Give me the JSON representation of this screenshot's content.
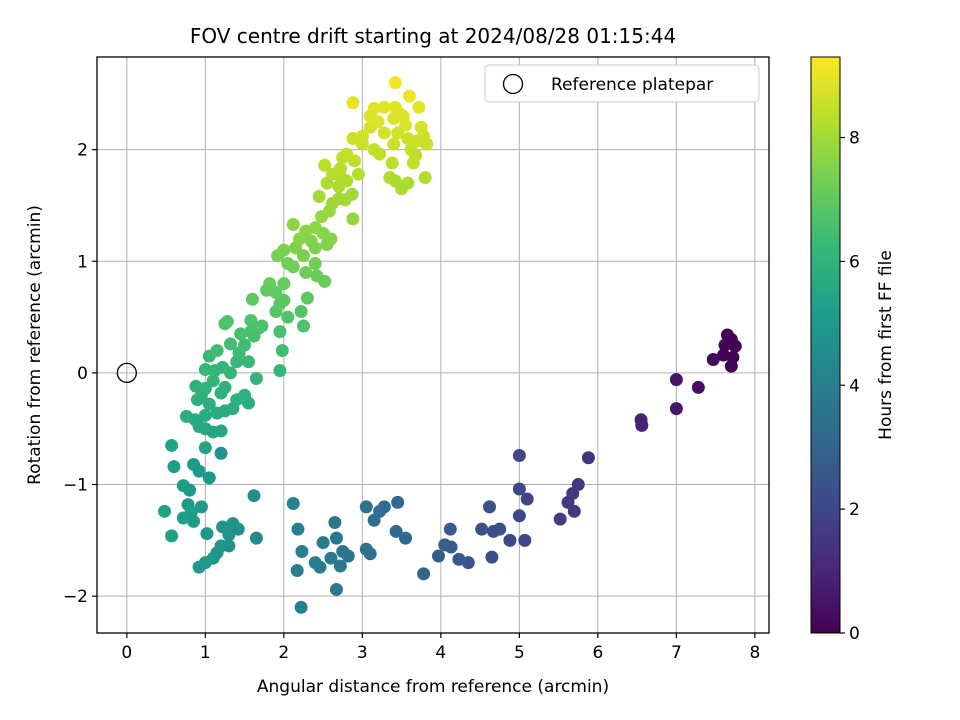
{
  "chart_data": {
    "type": "scatter",
    "title": "FOV centre drift starting at 2024/08/28 01:15:44",
    "xlabel": "Angular distance from reference (arcmin)",
    "ylabel": "Rotation from reference (arcmin)",
    "xlim": [
      -0.38,
      8.18
    ],
    "ylim": [
      -2.33,
      2.83
    ],
    "xticks": [
      0,
      1,
      2,
      3,
      4,
      5,
      6,
      7,
      8
    ],
    "yticks": [
      -2,
      -1,
      0,
      1,
      2
    ],
    "grid": true,
    "legend": {
      "position": "top-right",
      "entries": [
        "Reference platepar"
      ]
    },
    "reference_point": {
      "x": 0,
      "y": 0
    },
    "colorbar": {
      "label": "Hours from first FF file",
      "range": [
        0,
        9.3
      ],
      "ticks": [
        0,
        2,
        4,
        6,
        8
      ],
      "colormap": "viridis"
    },
    "series": [
      {
        "points": [
          [
            7.65,
            0.34
          ],
          [
            7.7,
            0.3
          ],
          [
            7.62,
            0.25
          ],
          [
            7.75,
            0.24
          ],
          [
            7.6,
            0.16
          ],
          [
            7.72,
            0.14
          ],
          [
            7.47,
            0.12
          ],
          [
            7.7,
            0.06
          ],
          [
            7.0,
            -0.06
          ],
          [
            7.28,
            -0.13
          ],
          [
            7.0,
            -0.32
          ],
          [
            6.55,
            -0.42
          ],
          [
            6.56,
            -0.47
          ],
          [
            5.88,
            -0.76
          ],
          [
            5.75,
            -1.0
          ],
          [
            5.68,
            -1.08
          ],
          [
            5.62,
            -1.16
          ],
          [
            5.7,
            -1.24
          ],
          [
            5.52,
            -1.31
          ],
          [
            5.0,
            -0.74
          ],
          [
            5.0,
            -1.04
          ],
          [
            5.1,
            -1.13
          ],
          [
            5.0,
            -1.28
          ],
          [
            5.07,
            -1.5
          ],
          [
            4.88,
            -1.5
          ],
          [
            4.62,
            -1.2
          ],
          [
            4.52,
            -1.4
          ],
          [
            4.75,
            -1.4
          ],
          [
            4.67,
            -1.42
          ],
          [
            4.65,
            -1.65
          ],
          [
            4.35,
            -1.7
          ],
          [
            4.23,
            -1.67
          ],
          [
            4.12,
            -1.4
          ],
          [
            4.05,
            -1.54
          ],
          [
            4.13,
            -1.56
          ],
          [
            3.97,
            -1.64
          ],
          [
            3.78,
            -1.8
          ],
          [
            3.55,
            -1.48
          ],
          [
            3.45,
            -1.16
          ],
          [
            3.43,
            -1.42
          ],
          [
            3.28,
            -1.2
          ],
          [
            3.22,
            -1.24
          ],
          [
            3.15,
            -1.32
          ],
          [
            3.05,
            -1.2
          ],
          [
            3.05,
            -1.58
          ],
          [
            3.1,
            -1.62
          ],
          [
            2.82,
            -1.64
          ],
          [
            2.75,
            -1.6
          ],
          [
            2.67,
            -1.48
          ],
          [
            2.65,
            -1.34
          ],
          [
            2.6,
            -1.66
          ],
          [
            2.72,
            -1.73
          ],
          [
            2.67,
            -1.94
          ],
          [
            2.5,
            -1.52
          ],
          [
            2.46,
            -1.74
          ],
          [
            2.4,
            -1.7
          ],
          [
            2.23,
            -1.6
          ],
          [
            2.17,
            -1.77
          ],
          [
            2.22,
            -2.1
          ],
          [
            2.18,
            -1.4
          ],
          [
            2.12,
            -1.17
          ],
          [
            1.62,
            -1.1
          ],
          [
            1.65,
            -1.48
          ],
          [
            1.42,
            -1.4
          ],
          [
            1.35,
            -1.35
          ],
          [
            1.3,
            -1.45
          ],
          [
            1.3,
            -1.55
          ],
          [
            1.22,
            -1.38
          ],
          [
            1.2,
            -1.55
          ],
          [
            1.15,
            -1.61
          ],
          [
            1.1,
            -1.66
          ],
          [
            1.0,
            -1.7
          ],
          [
            1.02,
            -1.44
          ],
          [
            0.92,
            -1.74
          ],
          [
            0.82,
            -1.25
          ],
          [
            0.85,
            -1.33
          ],
          [
            0.78,
            -1.18
          ],
          [
            0.72,
            -1.01
          ],
          [
            0.72,
            -1.3
          ],
          [
            0.57,
            -1.46
          ],
          [
            0.48,
            -1.24
          ],
          [
            0.95,
            -1.2
          ],
          [
            1.05,
            -0.94
          ],
          [
            0.8,
            -1.05
          ],
          [
            0.92,
            -0.88
          ],
          [
            0.85,
            -0.82
          ],
          [
            0.6,
            -0.84
          ],
          [
            0.57,
            -0.65
          ],
          [
            1.2,
            -0.72
          ],
          [
            1.0,
            -0.67
          ],
          [
            1.1,
            -0.53
          ],
          [
            1.0,
            -0.5
          ],
          [
            1.2,
            -0.52
          ],
          [
            0.92,
            -0.48
          ],
          [
            0.87,
            -0.42
          ],
          [
            0.76,
            -0.39
          ],
          [
            1.15,
            -0.36
          ],
          [
            1.0,
            -0.38
          ],
          [
            1.05,
            -0.28
          ],
          [
            0.9,
            -0.24
          ],
          [
            0.95,
            -0.2
          ],
          [
            1.25,
            -0.34
          ],
          [
            1.35,
            -0.32
          ],
          [
            1.0,
            -0.14
          ],
          [
            0.88,
            -0.12
          ],
          [
            1.2,
            -0.18
          ],
          [
            1.25,
            -0.13
          ],
          [
            1.4,
            -0.24
          ],
          [
            1.55,
            -0.27
          ],
          [
            1.5,
            -0.2
          ],
          [
            1.1,
            -0.07
          ],
          [
            1.32,
            0.0
          ],
          [
            1.4,
            0.1
          ],
          [
            1.22,
            0.05
          ],
          [
            1.12,
            0.02
          ],
          [
            1.0,
            0.03
          ],
          [
            1.05,
            0.15
          ],
          [
            1.15,
            0.2
          ],
          [
            1.32,
            0.26
          ],
          [
            1.43,
            0.18
          ],
          [
            1.55,
            0.1
          ],
          [
            1.65,
            -0.05
          ],
          [
            1.5,
            0.25
          ],
          [
            1.58,
            0.37
          ],
          [
            1.62,
            0.33
          ],
          [
            1.25,
            0.44
          ],
          [
            1.28,
            0.46
          ],
          [
            1.45,
            0.35
          ],
          [
            1.58,
            0.47
          ],
          [
            1.68,
            0.4
          ],
          [
            1.72,
            0.42
          ],
          [
            1.95,
            0.37
          ],
          [
            1.98,
            0.2
          ],
          [
            1.95,
            0.02
          ],
          [
            1.9,
            0.55
          ],
          [
            1.95,
            0.62
          ],
          [
            2.05,
            0.5
          ],
          [
            2.0,
            0.65
          ],
          [
            1.9,
            0.72
          ],
          [
            1.82,
            0.8
          ],
          [
            1.78,
            0.74
          ],
          [
            1.6,
            0.66
          ],
          [
            2.25,
            0.42
          ],
          [
            2.22,
            0.55
          ],
          [
            2.3,
            0.67
          ],
          [
            2.0,
            0.8
          ],
          [
            2.12,
            0.95
          ],
          [
            2.05,
            0.98
          ],
          [
            1.92,
            1.05
          ],
          [
            2.0,
            1.1
          ],
          [
            2.15,
            1.12
          ],
          [
            2.28,
            0.9
          ],
          [
            2.25,
            1.05
          ],
          [
            2.4,
            0.98
          ],
          [
            2.42,
            0.87
          ],
          [
            2.52,
            0.82
          ],
          [
            2.35,
            1.18
          ],
          [
            2.4,
            1.12
          ],
          [
            2.2,
            1.2
          ],
          [
            2.12,
            1.33
          ],
          [
            2.28,
            1.27
          ],
          [
            2.4,
            1.3
          ],
          [
            2.55,
            1.15
          ],
          [
            2.5,
            1.25
          ],
          [
            2.6,
            1.2
          ],
          [
            2.48,
            1.4
          ],
          [
            2.58,
            1.45
          ],
          [
            2.45,
            1.58
          ],
          [
            2.62,
            1.52
          ],
          [
            2.7,
            1.67
          ],
          [
            2.7,
            1.56
          ],
          [
            2.78,
            1.55
          ],
          [
            2.88,
            1.38
          ],
          [
            2.87,
            1.6
          ],
          [
            2.72,
            1.76
          ],
          [
            2.8,
            1.72
          ],
          [
            2.55,
            1.7
          ],
          [
            2.62,
            1.78
          ],
          [
            2.52,
            1.86
          ],
          [
            2.72,
            1.83
          ],
          [
            2.8,
            1.96
          ],
          [
            2.95,
            1.78
          ],
          [
            2.9,
            1.9
          ],
          [
            2.75,
            1.93
          ],
          [
            2.88,
            2.1
          ],
          [
            3.0,
            2.05
          ],
          [
            3.0,
            2.12
          ],
          [
            3.1,
            2.2
          ],
          [
            3.15,
            2.0
          ],
          [
            3.2,
            2.25
          ],
          [
            3.15,
            2.37
          ],
          [
            2.88,
            2.42
          ],
          [
            3.1,
            2.3
          ],
          [
            3.28,
            2.38
          ],
          [
            3.22,
            1.96
          ],
          [
            3.38,
            1.88
          ],
          [
            3.35,
            1.75
          ],
          [
            3.28,
            2.15
          ],
          [
            3.4,
            2.05
          ],
          [
            3.42,
            1.72
          ],
          [
            3.5,
            1.65
          ],
          [
            3.58,
            1.7
          ],
          [
            3.4,
            2.28
          ],
          [
            3.42,
            2.38
          ],
          [
            3.48,
            2.32
          ],
          [
            3.55,
            2.22
          ],
          [
            3.58,
            2.1
          ],
          [
            3.62,
            2.0
          ],
          [
            3.65,
            1.88
          ],
          [
            3.68,
            1.95
          ],
          [
            3.7,
            2.08
          ],
          [
            3.6,
            2.48
          ],
          [
            3.42,
            2.6
          ],
          [
            3.8,
            1.75
          ],
          [
            3.75,
            2.2
          ],
          [
            3.72,
            2.38
          ],
          [
            3.78,
            2.12
          ],
          [
            3.82,
            2.05
          ],
          [
            3.52,
            2.3
          ],
          [
            3.45,
            2.15
          ]
        ]
      }
    ]
  }
}
